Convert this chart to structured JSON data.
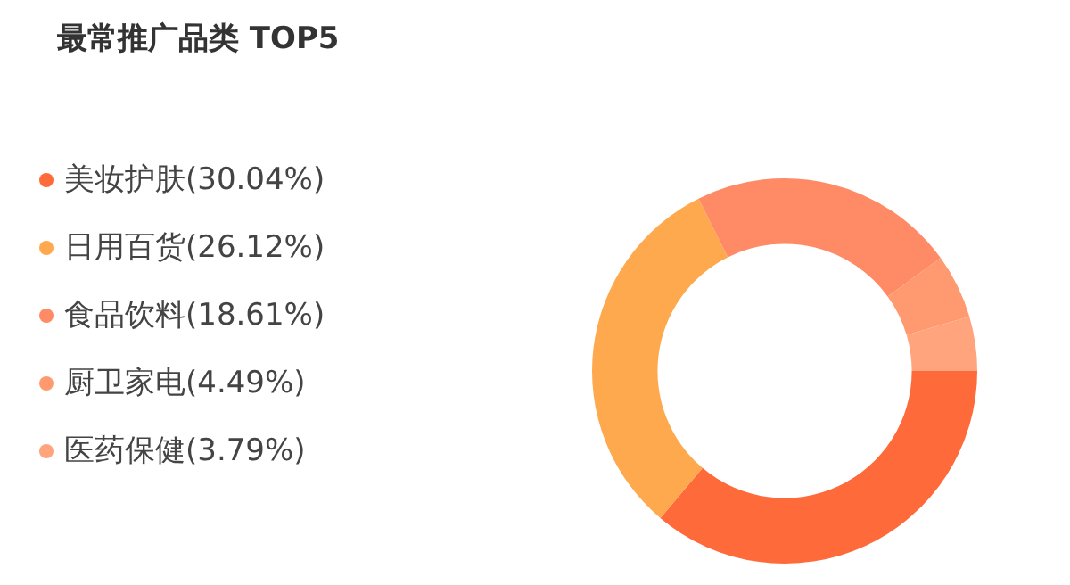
{
  "chart_data": {
    "type": "donut",
    "title": "最常推广品类 TOP5",
    "categories": [
      "美妆护肤(30.04%)",
      "日用百货(26.12%)",
      "食品饮料(18.61%)",
      "厨卫家电(4.49%)",
      "医药保健(3.79%)"
    ],
    "values": [
      30.04,
      26.12,
      18.61,
      4.49,
      3.79
    ],
    "colors": [
      "#ff6a3b",
      "#ffa94f",
      "#ff8a66",
      "#ff9a70",
      "#ffa47d"
    ],
    "legend": "left"
  }
}
